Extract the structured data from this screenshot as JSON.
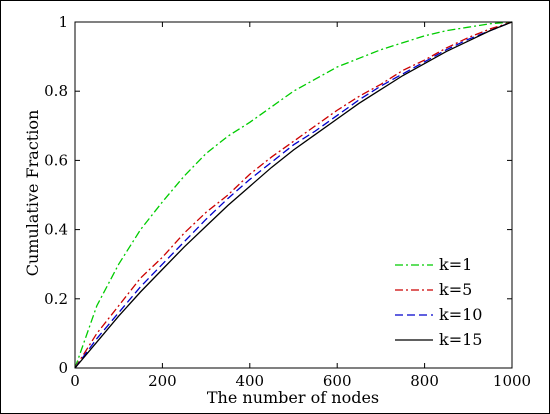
{
  "chart_data": {
    "type": "line",
    "xlabel": "The number of nodes",
    "ylabel": "Cumulative Fraction",
    "xlim": [
      0,
      1000
    ],
    "ylim": [
      0,
      1
    ],
    "xticks": [
      0,
      200,
      400,
      600,
      800,
      1000
    ],
    "yticks": [
      0,
      0.2,
      0.4,
      0.6,
      0.8,
      1
    ],
    "xtick_labels": [
      "0",
      "200",
      "400",
      "600",
      "800",
      "1000"
    ],
    "ytick_labels": [
      "0",
      "0.2",
      "0.4",
      "0.6",
      "0.8",
      "1"
    ],
    "grid": false,
    "legend_position": "lower-right",
    "x": [
      0,
      50,
      100,
      150,
      200,
      250,
      300,
      350,
      400,
      450,
      500,
      550,
      600,
      650,
      700,
      750,
      800,
      850,
      900,
      950,
      1000
    ],
    "series": [
      {
        "name": "k=1",
        "color": "#00cc00",
        "dash": "dash-dot",
        "values": [
          0,
          0.18,
          0.3,
          0.4,
          0.48,
          0.555,
          0.62,
          0.67,
          0.71,
          0.755,
          0.8,
          0.835,
          0.87,
          0.895,
          0.92,
          0.94,
          0.96,
          0.975,
          0.985,
          0.995,
          1.0
        ]
      },
      {
        "name": "k=5",
        "color": "#cc0000",
        "dash": "dash-dot",
        "values": [
          0,
          0.1,
          0.18,
          0.26,
          0.32,
          0.39,
          0.45,
          0.5,
          0.56,
          0.61,
          0.655,
          0.7,
          0.745,
          0.785,
          0.82,
          0.86,
          0.89,
          0.925,
          0.955,
          0.98,
          1.0
        ]
      },
      {
        "name": "k=10",
        "color": "#0000cc",
        "dash": "dash",
        "values": [
          0,
          0.085,
          0.16,
          0.235,
          0.3,
          0.365,
          0.43,
          0.49,
          0.545,
          0.595,
          0.645,
          0.685,
          0.73,
          0.775,
          0.815,
          0.85,
          0.885,
          0.92,
          0.95,
          0.975,
          1.0
        ]
      },
      {
        "name": "k=15",
        "color": "#000000",
        "dash": "solid",
        "values": [
          0,
          0.075,
          0.15,
          0.22,
          0.285,
          0.35,
          0.41,
          0.47,
          0.525,
          0.58,
          0.63,
          0.675,
          0.72,
          0.765,
          0.805,
          0.845,
          0.88,
          0.915,
          0.945,
          0.975,
          1.0
        ]
      }
    ]
  }
}
